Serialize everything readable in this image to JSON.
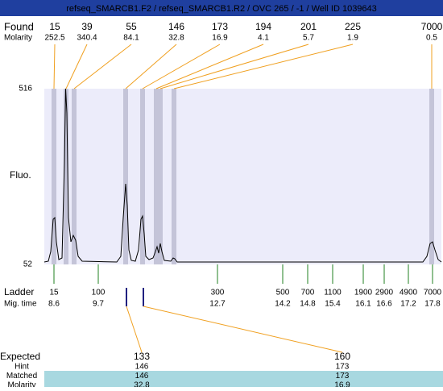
{
  "title": "refseq_SMARCB1.F2 / refseq_SMARCB1.R2 / OVC 265 / -1 / Well ID 1039643",
  "found": {
    "label": "Found",
    "sizes": [
      15,
      39,
      55,
      146,
      173,
      194,
      201,
      225,
      7000
    ],
    "molarity_label": "Molarity",
    "molarity": [
      252.5,
      340.4,
      84.1,
      32.8,
      16.9,
      4.1,
      5.7,
      1.9,
      0.5
    ]
  },
  "y_axis": {
    "label": "Fluo.",
    "top": 516,
    "bottom": 52
  },
  "ladder": {
    "label": "Ladder",
    "sizes": [
      15,
      100,
      300,
      500,
      700,
      1100,
      1900,
      2900,
      4900,
      7000
    ],
    "mig_label": "Mig. time",
    "mig_times": [
      8.6,
      9.7,
      12.7,
      14.2,
      14.8,
      15.4,
      16.1,
      16.6,
      17.2,
      17.8
    ]
  },
  "expected": {
    "label": "Expected",
    "values": [
      133,
      160
    ]
  },
  "hint": {
    "label": "Hint",
    "values": [
      146,
      173
    ]
  },
  "matched": {
    "label": "Matched",
    "values": [
      146,
      173
    ]
  },
  "molarity": {
    "label": "Molarity",
    "values": [
      32.8,
      16.9
    ]
  }
}
